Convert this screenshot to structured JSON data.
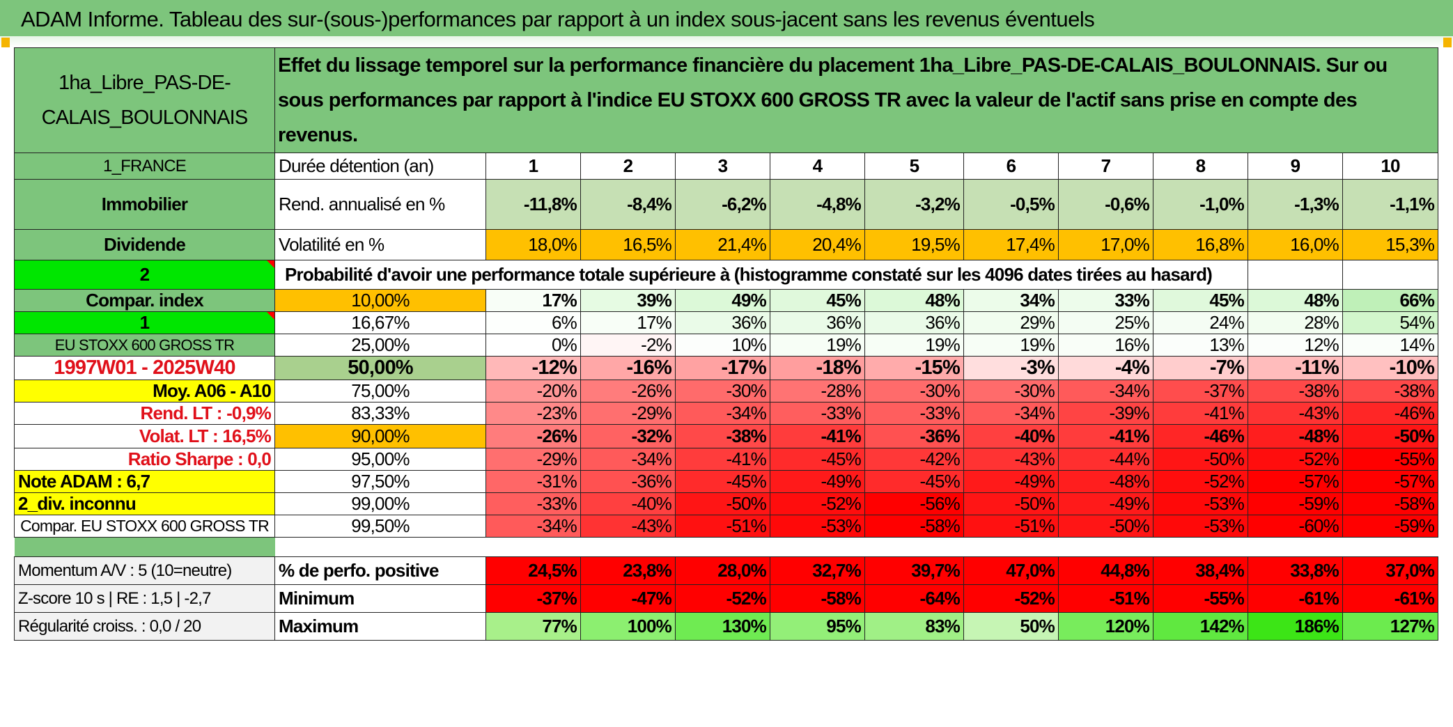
{
  "title": "ADAM Informe. Tableau des sur-(sous-)performances par rapport à un index sous-jacent sans les revenus éventuels",
  "fund_name": "1ha_Libre_PAS-DE-CALAIS_BOULONNAIS",
  "description": "Effet du lissage temporel sur la performance financière du placement 1ha_Libre_PAS-DE-CALAIS_BOULONNAIS. Sur ou sous performances par rapport à l'indice EU STOXX 600 GROSS TR avec la valeur de l'actif sans prise en compte des revenus.",
  "left_labels": {
    "country": "1_FRANCE",
    "type": "Immobilier",
    "distribution": "Dividende",
    "code": "2",
    "compar_index": "Compar. index",
    "code2": "1",
    "index_name": "EU STOXX 600 GROSS TR",
    "period": "1997W01 - 2025W40",
    "moy": "Moy. A06 - A10",
    "rend_lt": "Rend. LT :    -0,9%",
    "volat_lt": "Volat. LT :    16,5%",
    "sharpe": "Ratio Sharpe :    0,0",
    "note": "Note ADAM : 6,7",
    "div": "2_div. inconnu",
    "compar_eu": "Compar. EU STOXX 600 GROSS TR",
    "momentum": "Momentum A/V : 5 (10=neutre)",
    "zscore": "Z-score 10 s | RE : 1,5 | -2,7",
    "regularite": "Régularité croiss. : 0,0 / 20"
  },
  "row_labels": {
    "duree": "Durée détention (an)",
    "rend": "Rend. annualisé en %",
    "volat": "Volatilité en %",
    "proba": "Probabilité d'avoir une performance totale supérieure à (histogramme constaté sur les 4096 dates tirées au hasard)",
    "perfo_pos": "% de perfo. positive",
    "minimum": "Minimum",
    "maximum": "Maximum"
  },
  "years": [
    "1",
    "2",
    "3",
    "4",
    "5",
    "6",
    "7",
    "8",
    "9",
    "10"
  ],
  "rend": [
    "-11,8%",
    "-8,4%",
    "-6,2%",
    "-4,8%",
    "-3,2%",
    "-0,5%",
    "-0,6%",
    "-1,0%",
    "-1,3%",
    "-1,1%"
  ],
  "volat": [
    "18,0%",
    "16,5%",
    "21,4%",
    "20,4%",
    "19,5%",
    "17,4%",
    "17,0%",
    "16,8%",
    "16,0%",
    "15,3%"
  ],
  "percentiles": [
    {
      "p": "10,00%",
      "v": [
        "17%",
        "39%",
        "49%",
        "45%",
        "48%",
        "34%",
        "33%",
        "45%",
        "48%",
        "66%"
      ]
    },
    {
      "p": "16,67%",
      "v": [
        "6%",
        "17%",
        "36%",
        "36%",
        "36%",
        "29%",
        "25%",
        "24%",
        "28%",
        "54%"
      ]
    },
    {
      "p": "25,00%",
      "v": [
        "0%",
        "-2%",
        "10%",
        "19%",
        "19%",
        "19%",
        "16%",
        "13%",
        "12%",
        "14%"
      ]
    },
    {
      "p": "50,00%",
      "v": [
        "-12%",
        "-16%",
        "-17%",
        "-18%",
        "-15%",
        "-3%",
        "-4%",
        "-7%",
        "-11%",
        "-10%"
      ]
    },
    {
      "p": "75,00%",
      "v": [
        "-20%",
        "-26%",
        "-30%",
        "-28%",
        "-30%",
        "-30%",
        "-34%",
        "-37%",
        "-38%",
        "-38%"
      ]
    },
    {
      "p": "83,33%",
      "v": [
        "-23%",
        "-29%",
        "-34%",
        "-33%",
        "-33%",
        "-34%",
        "-39%",
        "-41%",
        "-43%",
        "-46%"
      ]
    },
    {
      "p": "90,00%",
      "v": [
        "-26%",
        "-32%",
        "-38%",
        "-41%",
        "-36%",
        "-40%",
        "-41%",
        "-46%",
        "-48%",
        "-50%"
      ]
    },
    {
      "p": "95,00%",
      "v": [
        "-29%",
        "-34%",
        "-41%",
        "-45%",
        "-42%",
        "-43%",
        "-44%",
        "-50%",
        "-52%",
        "-55%"
      ]
    },
    {
      "p": "97,50%",
      "v": [
        "-31%",
        "-36%",
        "-45%",
        "-49%",
        "-45%",
        "-49%",
        "-48%",
        "-52%",
        "-57%",
        "-57%"
      ]
    },
    {
      "p": "99,00%",
      "v": [
        "-33%",
        "-40%",
        "-50%",
        "-52%",
        "-56%",
        "-50%",
        "-49%",
        "-53%",
        "-59%",
        "-58%"
      ]
    },
    {
      "p": "99,50%",
      "v": [
        "-34%",
        "-43%",
        "-51%",
        "-53%",
        "-58%",
        "-51%",
        "-50%",
        "-53%",
        "-60%",
        "-59%"
      ]
    }
  ],
  "perfo_pos": [
    "24,5%",
    "23,8%",
    "28,0%",
    "32,7%",
    "39,7%",
    "47,0%",
    "44,8%",
    "38,4%",
    "33,8%",
    "37,0%"
  ],
  "minimum": [
    "-37%",
    "-47%",
    "-52%",
    "-58%",
    "-64%",
    "-52%",
    "-51%",
    "-55%",
    "-61%",
    "-61%"
  ],
  "maximum": [
    "77%",
    "100%",
    "130%",
    "95%",
    "83%",
    "50%",
    "120%",
    "142%",
    "186%",
    "127%"
  ],
  "colors": {
    "header_green": "#7dc57c",
    "bright_green": "#00e600",
    "yellow": "#ffff00",
    "orange": "#ffc000",
    "pale_green": "#c6e0b4",
    "mid_green": "#a9d08e",
    "red_text": "#e0101a"
  }
}
